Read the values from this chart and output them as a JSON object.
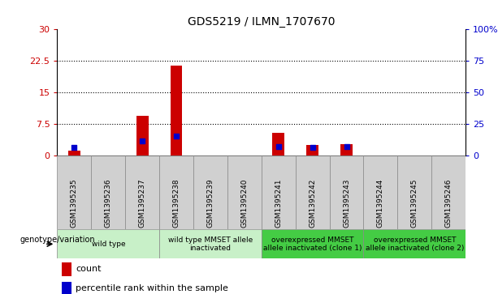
{
  "title": "GDS5219 / ILMN_1707670",
  "samples": [
    "GSM1395235",
    "GSM1395236",
    "GSM1395237",
    "GSM1395238",
    "GSM1395239",
    "GSM1395240",
    "GSM1395241",
    "GSM1395242",
    "GSM1395243",
    "GSM1395244",
    "GSM1395245",
    "GSM1395246"
  ],
  "counts": [
    1.2,
    0,
    9.5,
    21.5,
    0,
    0,
    5.5,
    2.5,
    2.8,
    0,
    0,
    0
  ],
  "percentiles": [
    6.5,
    0,
    11.5,
    15.5,
    0,
    0,
    7.5,
    6.5,
    7.0,
    0,
    0,
    0
  ],
  "left_ylim": [
    0,
    30
  ],
  "right_ylim": [
    0,
    100
  ],
  "left_yticks": [
    0,
    7.5,
    15,
    22.5,
    30
  ],
  "right_yticks": [
    0,
    25,
    50,
    75,
    100
  ],
  "right_yticklabels": [
    "0",
    "25",
    "50",
    "75",
    "100%"
  ],
  "bar_color": "#cc0000",
  "dot_color": "#0000cc",
  "groups": [
    {
      "label": "wild type",
      "start": 0,
      "end": 3,
      "color": "#c8f0c8"
    },
    {
      "label": "wild type MMSET allele\ninactivated",
      "start": 3,
      "end": 6,
      "color": "#c8f0c8"
    },
    {
      "label": "overexpressed MMSET\nallele inactivated (clone 1)",
      "start": 6,
      "end": 9,
      "color": "#44cc44"
    },
    {
      "label": "overexpressed MMSET\nallele inactivated (clone 2)",
      "start": 9,
      "end": 12,
      "color": "#44cc44"
    }
  ],
  "genotype_label": "genotype/variation",
  "legend_count_label": "count",
  "legend_pct_label": "percentile rank within the sample",
  "bar_color_legend": "#cc0000",
  "dot_color_legend": "#0000cc",
  "bar_width": 0.35,
  "dot_size": 18,
  "bg_color": "#ffffff",
  "grid_yticks": [
    7.5,
    15,
    22.5
  ],
  "tick_color_left": "#cc0000",
  "tick_color_right": "#0000cc",
  "sample_bg_color": "#d0d0d0",
  "sample_border_color": "#888888"
}
